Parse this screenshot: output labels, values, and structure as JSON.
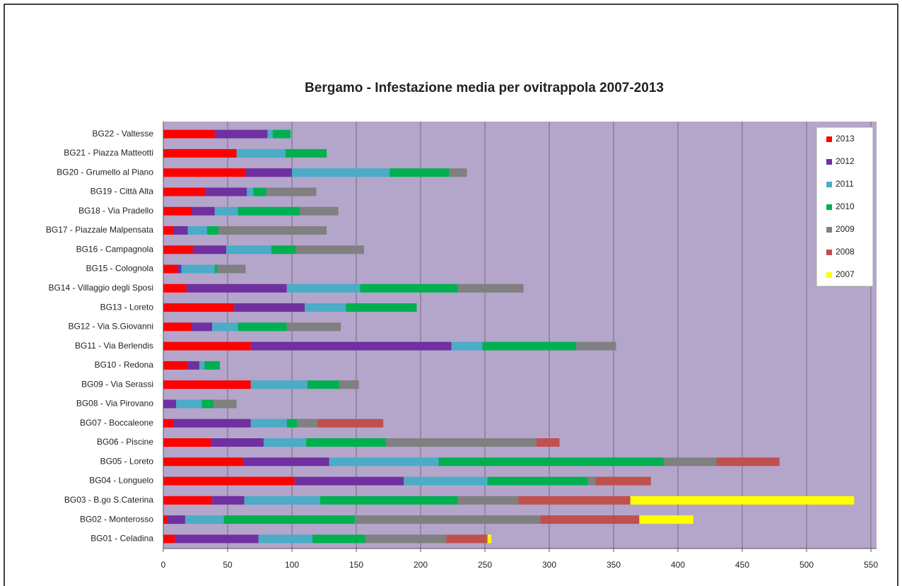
{
  "chart_data": {
    "type": "stacked-bar-horizontal",
    "title": "Bergamo - Infestazione media per ovitrappola 2007-2013",
    "categories": [
      "BG01 - Celadina",
      "BG02 - Monterosso",
      "BG03 - B.go S.Caterina",
      "BG04 - Longuelo",
      "BG05 - Loreto",
      "BG06 - Piscine",
      "BG07 - Boccaleone",
      "BG08 - Via Pirovano",
      "BG09 - Via Serassi",
      "BG10 - Redona",
      "BG11 - Via Berlendis",
      "BG12 - Via S.Giovanni",
      "BG13 - Loreto",
      "BG14 - Villaggio degli Sposi",
      "BG15 - Colognola",
      "BG16 - Campagnola",
      "BG17 - Piazzale Malpensata",
      "BG18 - Via Pradello",
      "BG19 - Città Alta",
      "BG20 - Grumello al Piano",
      "BG21 - Piazza Matteotti",
      "BG22 - Valtesse"
    ],
    "series": [
      {
        "name": "2013",
        "color": "#ff0000",
        "values": [
          9,
          3,
          38,
          102,
          62,
          37,
          8,
          0,
          68,
          19,
          68,
          22,
          55,
          18,
          11,
          23,
          8,
          22,
          33,
          64,
          57,
          40
        ]
      },
      {
        "name": "2012",
        "color": "#7030a0",
        "values": [
          65,
          14,
          25,
          85,
          67,
          41,
          60,
          10,
          0,
          9,
          156,
          16,
          55,
          78,
          3,
          26,
          11,
          18,
          32,
          36,
          0,
          41
        ]
      },
      {
        "name": "2011",
        "color": "#4bacc6",
        "values": [
          42,
          30,
          59,
          65,
          85,
          33,
          28,
          20,
          44,
          4,
          24,
          20,
          32,
          57,
          26,
          35,
          15,
          18,
          5,
          76,
          38,
          4
        ]
      },
      {
        "name": "2010",
        "color": "#00b050",
        "values": [
          41,
          102,
          107,
          78,
          175,
          62,
          8,
          9,
          25,
          12,
          73,
          38,
          55,
          76,
          2,
          19,
          9,
          48,
          10,
          46,
          32,
          14
        ]
      },
      {
        "name": "2009",
        "color": "#808080",
        "values": [
          63,
          144,
          47,
          6,
          41,
          117,
          16,
          18,
          15,
          0,
          31,
          42,
          0,
          51,
          22,
          53,
          84,
          30,
          39,
          14,
          0,
          0
        ]
      },
      {
        "name": "2008",
        "color": "#c0504d",
        "values": [
          32,
          77,
          87,
          43,
          49,
          18,
          51,
          0,
          0,
          0,
          0,
          0,
          0,
          0,
          0,
          0,
          0,
          0,
          0,
          0,
          0,
          0
        ]
      },
      {
        "name": "2007",
        "color": "#ffff00",
        "values": [
          3,
          42,
          174,
          0,
          0,
          0,
          0,
          0,
          0,
          0,
          0,
          0,
          0,
          0,
          0,
          0,
          0,
          0,
          0,
          0,
          0,
          0
        ]
      }
    ],
    "xlim": [
      0,
      550
    ],
    "xticks": [
      0,
      50,
      100,
      150,
      200,
      250,
      300,
      350,
      400,
      450,
      500,
      550
    ],
    "grid": true,
    "legend": "top-right"
  }
}
